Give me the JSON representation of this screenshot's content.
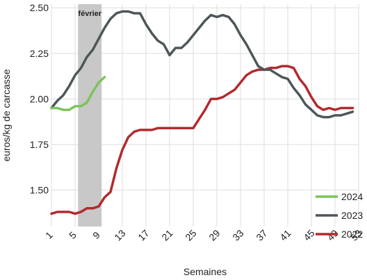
{
  "chart_data": {
    "type": "line",
    "title": "",
    "xlabel": "Semaines",
    "ylabel": "euros/kg de carcasse",
    "xlim": [
      0,
      53
    ],
    "ylim": [
      1.3,
      2.52
    ],
    "x_ticks": [
      1,
      5,
      9,
      13,
      17,
      21,
      25,
      29,
      33,
      37,
      41,
      45,
      49,
      53
    ],
    "y_ticks": [
      1.5,
      1.75,
      2.0,
      2.25,
      2.5
    ],
    "y_tick_labels": [
      "1.50",
      "1.75",
      "2.00",
      "2.25",
      "2.50"
    ],
    "grid": true,
    "legend_position": "bottom-right",
    "shaded_band": {
      "label": "février",
      "x_start": 5.5,
      "x_end": 9.5,
      "color": "#c8c8c8"
    },
    "series": [
      {
        "name": "2024",
        "color": "#7dc35a",
        "x": [
          1,
          2,
          3,
          4,
          5,
          6,
          7,
          8,
          9,
          10
        ],
        "y": [
          1.95,
          1.95,
          1.94,
          1.94,
          1.96,
          1.96,
          1.98,
          2.04,
          2.09,
          2.12
        ]
      },
      {
        "name": "2023",
        "color": "#4d5659",
        "x": [
          1,
          2,
          3,
          4,
          5,
          6,
          7,
          8,
          9,
          10,
          11,
          12,
          13,
          14,
          15,
          16,
          17,
          18,
          19,
          20,
          21,
          22,
          23,
          24,
          25,
          26,
          27,
          28,
          29,
          30,
          31,
          32,
          33,
          34,
          35,
          36,
          37,
          38,
          39,
          40,
          41,
          42,
          43,
          44,
          45,
          46,
          47,
          48,
          49,
          50,
          51,
          52
        ],
        "y": [
          1.95,
          1.99,
          2.02,
          2.07,
          2.13,
          2.17,
          2.23,
          2.27,
          2.33,
          2.39,
          2.44,
          2.47,
          2.48,
          2.48,
          2.47,
          2.47,
          2.41,
          2.36,
          2.32,
          2.3,
          2.24,
          2.28,
          2.28,
          2.31,
          2.35,
          2.39,
          2.43,
          2.46,
          2.45,
          2.46,
          2.45,
          2.41,
          2.35,
          2.3,
          2.24,
          2.18,
          2.16,
          2.16,
          2.14,
          2.12,
          2.11,
          2.06,
          2.02,
          1.97,
          1.94,
          1.91,
          1.9,
          1.9,
          1.91,
          1.91,
          1.92,
          1.93
        ]
      },
      {
        "name": "2022",
        "color": "#b22a2e",
        "x": [
          1,
          2,
          3,
          4,
          5,
          6,
          7,
          8,
          9,
          10,
          11,
          12,
          13,
          14,
          15,
          16,
          17,
          18,
          19,
          20,
          21,
          22,
          23,
          24,
          25,
          26,
          27,
          28,
          29,
          30,
          31,
          32,
          33,
          34,
          35,
          36,
          37,
          38,
          39,
          40,
          41,
          42,
          43,
          44,
          45,
          46,
          47,
          48,
          49,
          50,
          51,
          52
        ],
        "y": [
          1.37,
          1.38,
          1.38,
          1.38,
          1.37,
          1.38,
          1.4,
          1.4,
          1.41,
          1.46,
          1.49,
          1.62,
          1.72,
          1.79,
          1.82,
          1.83,
          1.83,
          1.83,
          1.84,
          1.84,
          1.84,
          1.84,
          1.84,
          1.84,
          1.84,
          1.89,
          1.94,
          2.0,
          2.0,
          2.01,
          2.03,
          2.05,
          2.09,
          2.13,
          2.15,
          2.16,
          2.16,
          2.17,
          2.17,
          2.18,
          2.18,
          2.17,
          2.11,
          2.07,
          2.01,
          1.96,
          1.94,
          1.95,
          1.94,
          1.95,
          1.95,
          1.95
        ]
      }
    ]
  }
}
